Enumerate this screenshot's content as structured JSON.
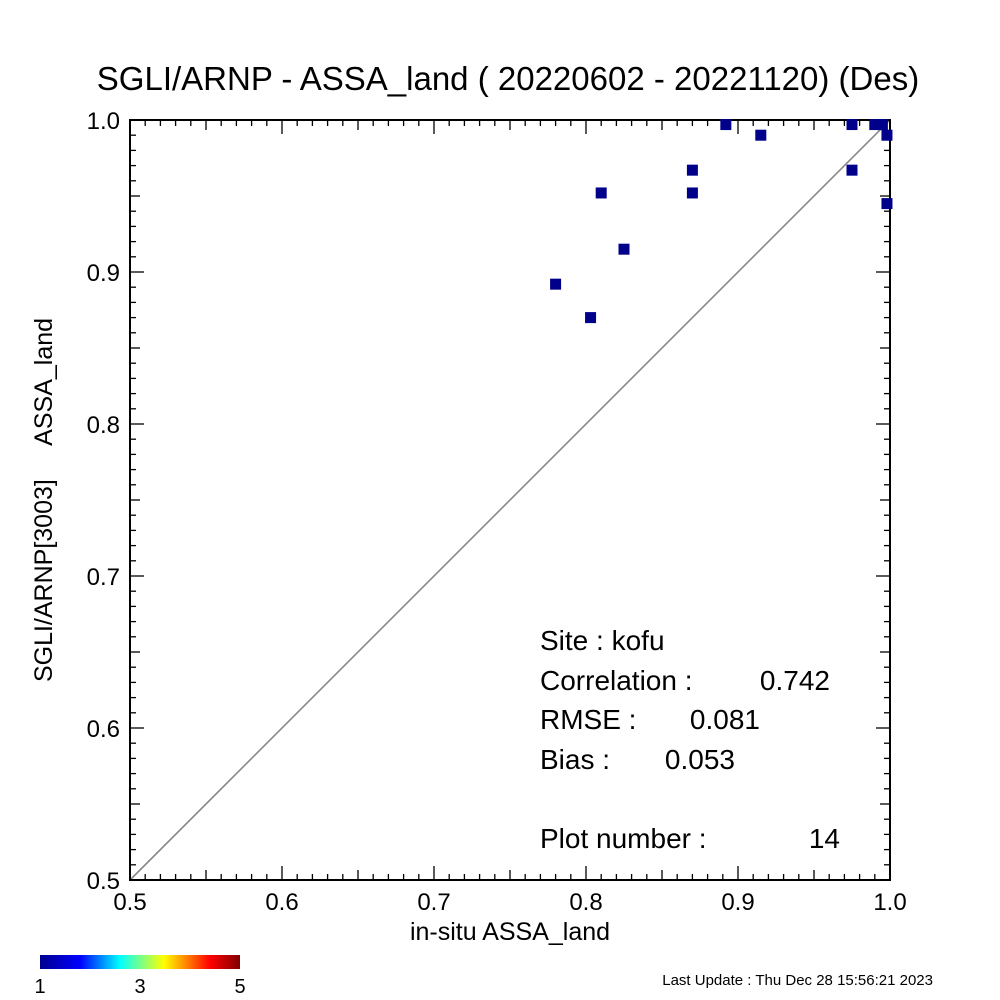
{
  "chart_data": {
    "type": "scatter",
    "title": "SGLI/ARNP - ASSA_land ( 20220602 - 20221120) (Des)",
    "xlabel": "in-situ ASSA_land",
    "ylabel": "SGLI/ARNP[3003]     ASSA_land",
    "xlim": [
      0.5,
      1.0
    ],
    "ylim": [
      0.5,
      1.0
    ],
    "x_ticks": [
      "0.5",
      "0.6",
      "0.7",
      "0.8",
      "0.9",
      "1.0"
    ],
    "y_ticks": [
      "0.5",
      "0.6",
      "0.7",
      "0.8",
      "0.9",
      "1.0"
    ],
    "reference_line": "1:1",
    "marker_color": "#00008b",
    "points": [
      {
        "x": 0.78,
        "y": 0.892
      },
      {
        "x": 0.803,
        "y": 0.87
      },
      {
        "x": 0.81,
        "y": 0.952
      },
      {
        "x": 0.825,
        "y": 0.915
      },
      {
        "x": 0.87,
        "y": 0.967
      },
      {
        "x": 0.87,
        "y": 0.952
      },
      {
        "x": 0.892,
        "y": 0.997
      },
      {
        "x": 0.915,
        "y": 0.99
      },
      {
        "x": 0.975,
        "y": 0.997
      },
      {
        "x": 0.975,
        "y": 0.967
      },
      {
        "x": 0.99,
        "y": 0.997
      },
      {
        "x": 0.995,
        "y": 0.997
      },
      {
        "x": 0.998,
        "y": 0.99
      },
      {
        "x": 0.998,
        "y": 0.945
      }
    ],
    "stats": {
      "site": "Site : kofu",
      "correlation_label": "Correlation :",
      "correlation_value": "0.742",
      "rmse_label": "RMSE :",
      "rmse_value": "0.081",
      "bias_label": "Bias :",
      "bias_value": "0.053",
      "plot_number_label": "Plot number :",
      "plot_number_value": "14"
    },
    "colorbar": {
      "labels": [
        "1",
        "3",
        "5"
      ],
      "colors": [
        "#00008f",
        "#0000ff",
        "#00ffff",
        "#ffff00",
        "#ff0000",
        "#800000"
      ]
    }
  },
  "footer": {
    "last_update": "Last Update : Thu Dec 28 15:56:21 2023"
  }
}
